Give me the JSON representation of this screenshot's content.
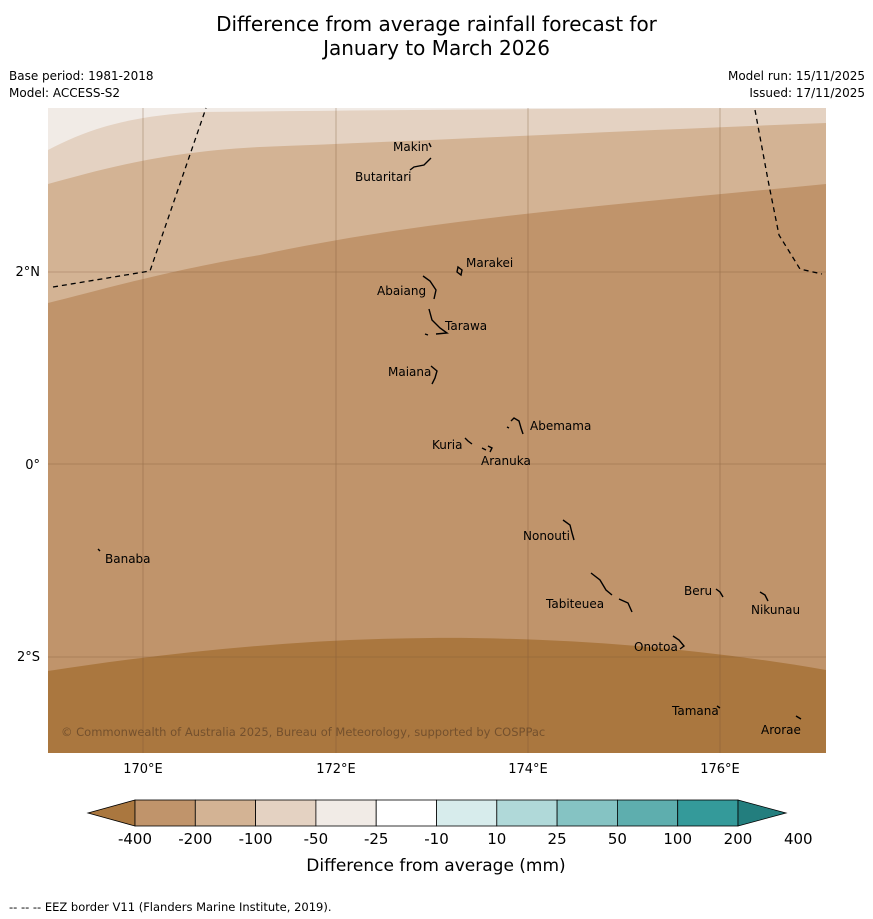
{
  "title": {
    "line1": "Difference from average rainfall forecast for",
    "line2": "January to March 2026"
  },
  "meta": {
    "base_period": "Base period: 1981-2018",
    "model": "Model: ACCESS-S2",
    "model_run": "Model run: 15/11/2025",
    "issued": "Issued: 17/11/2025"
  },
  "map": {
    "lat_labels": [
      "2°N",
      "0°",
      "2°S"
    ],
    "lon_labels": [
      "170°E",
      "172°E",
      "174°E",
      "176°E"
    ],
    "copyright": "© Commonwealth of Australia 2025, Bureau of Meteorology, supported by COSPPac",
    "islands": [
      "Makin",
      "Butaritari",
      "Marakei",
      "Abaiang",
      "Tarawa",
      "Maiana",
      "Abemama",
      "Kuria",
      "Aranuka",
      "Nonouti",
      "Banaba",
      "Tabiteuea",
      "Beru",
      "Nikunau",
      "Onotoa",
      "Tamana",
      "Arorae"
    ]
  },
  "colorbar": {
    "label": "Difference from average (mm)",
    "ticks": [
      "-400",
      "-200",
      "-100",
      "-50",
      "-25",
      "-10",
      "10",
      "25",
      "50",
      "100",
      "200",
      "400"
    ],
    "colors": [
      "#aa773f",
      "#c0946b",
      "#d3b394",
      "#e4d2c2",
      "#f1ebe6",
      "#ffffff",
      "#d7ecec",
      "#b0d9d9",
      "#85c3c3",
      "#5eaeae",
      "#349a9a",
      "#237e7e"
    ]
  },
  "footer": "--  --  -- EEZ border V11 (Flanders Marine Institute, 2019)."
}
